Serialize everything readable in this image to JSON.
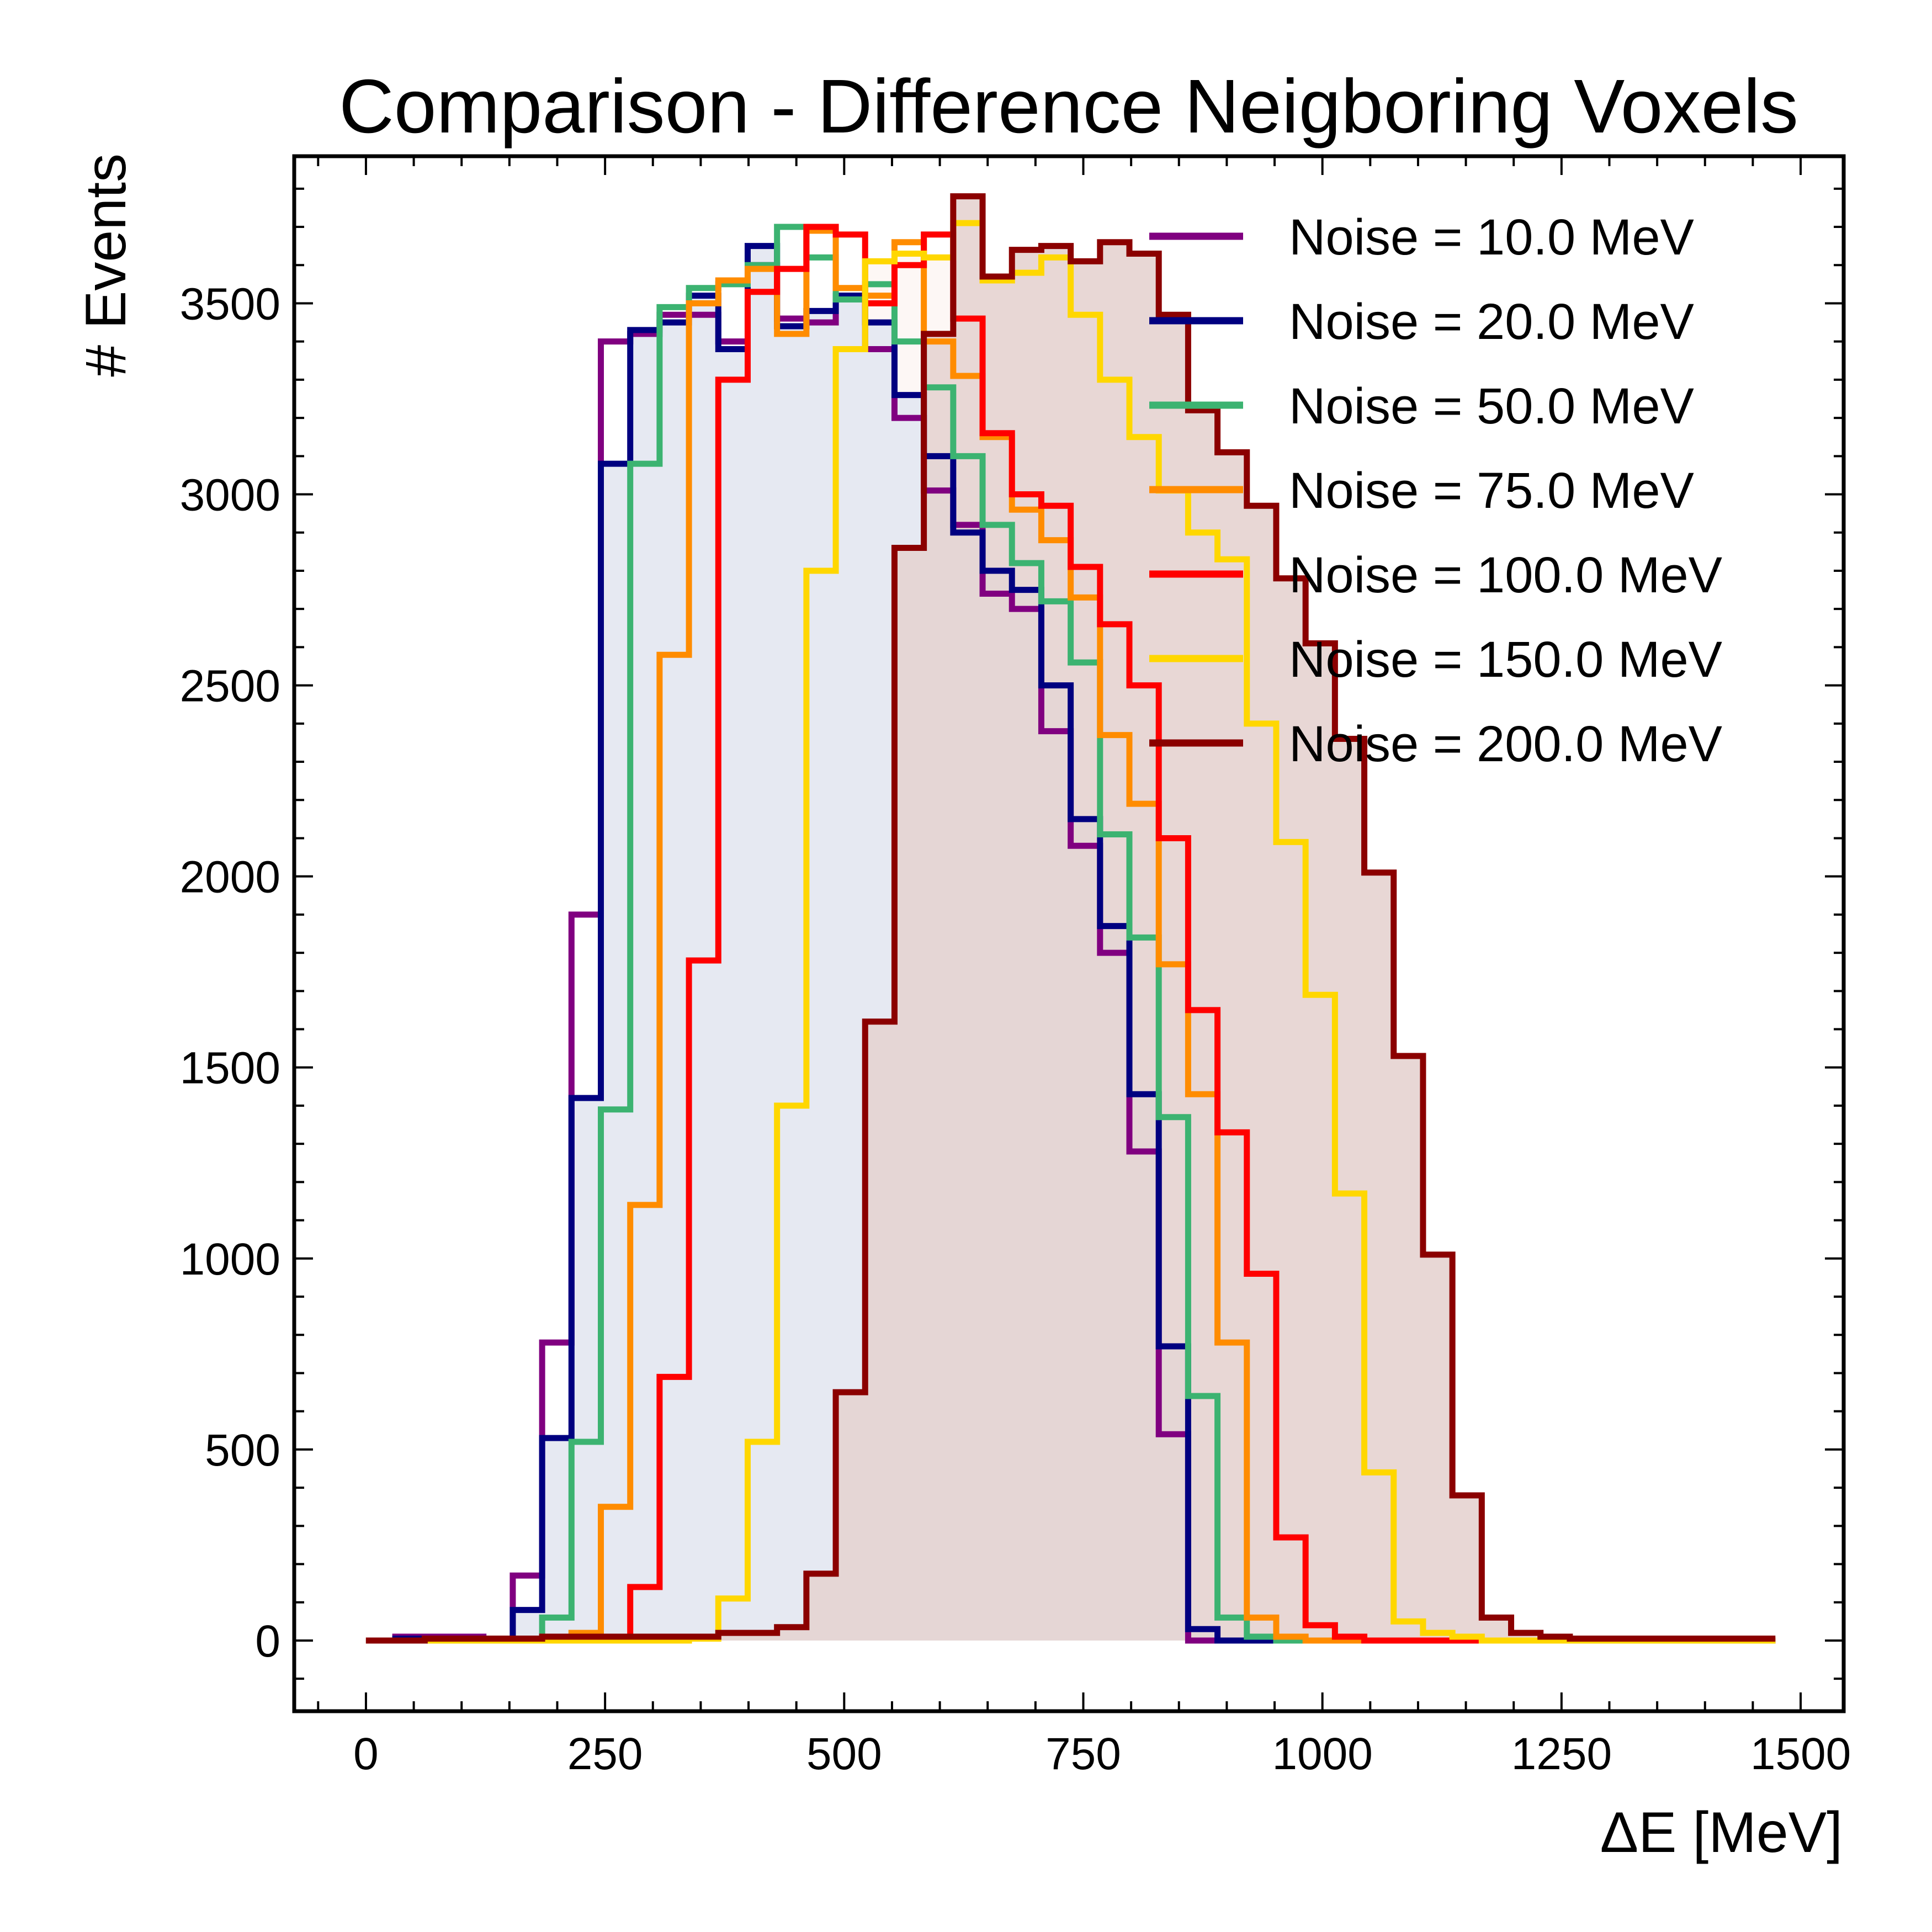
{
  "chart_data": {
    "type": "histogram-step",
    "title": "Comparison - Difference Neigboring Voxels",
    "xlabel": "ΔE [MeV]",
    "ylabel": "# Events",
    "xlim": [
      -75,
      1545
    ],
    "ylim": [
      -185,
      3885
    ],
    "xticks": [
      0,
      250,
      500,
      750,
      1000,
      1250,
      1500
    ],
    "xtick_labels": [
      "0",
      "250",
      "500",
      "750",
      "1000",
      "1250",
      "1500"
    ],
    "yticks": [
      0,
      500,
      1000,
      1500,
      2000,
      2500,
      3000,
      3500
    ],
    "ytick_labels": [
      "0",
      "500",
      "1000",
      "1500",
      "2000",
      "2500",
      "3000",
      "3500"
    ],
    "grid": false,
    "legend_position": "top-right",
    "bin_start": 0,
    "bin_width": 30.7,
    "series": [
      {
        "name": "Noise = 10.0 MeV",
        "color": "#800080",
        "values": [
          0,
          10,
          10,
          10,
          0,
          170,
          780,
          1900,
          3400,
          3420,
          3470,
          3470,
          3400,
          3600,
          3460,
          3450,
          3520,
          3380,
          3200,
          3010,
          2920,
          2740,
          2700,
          2380,
          2080,
          1800,
          1280,
          540,
          0,
          0,
          0,
          0,
          0,
          0,
          0,
          0,
          0,
          0,
          0,
          0,
          0,
          0,
          0,
          0,
          0,
          0,
          0,
          0
        ]
      },
      {
        "name": "Noise = 20.0 MeV",
        "color": "#000080",
        "values": [
          0,
          5,
          5,
          5,
          5,
          80,
          530,
          1420,
          3080,
          3430,
          3450,
          3520,
          3380,
          3650,
          3440,
          3480,
          3520,
          3450,
          3260,
          3100,
          2900,
          2800,
          2750,
          2500,
          2150,
          1870,
          1430,
          770,
          30,
          0,
          0,
          0,
          0,
          0,
          0,
          0,
          0,
          0,
          0,
          0,
          0,
          0,
          0,
          0,
          0,
          0,
          0,
          0
        ]
      },
      {
        "name": "Noise = 50.0 MeV",
        "color": "#3cb371",
        "values": [
          0,
          0,
          0,
          0,
          5,
          5,
          60,
          520,
          1390,
          3080,
          3490,
          3540,
          3550,
          3600,
          3700,
          3620,
          3510,
          3550,
          3400,
          3280,
          3100,
          2920,
          2820,
          2720,
          2560,
          2110,
          1840,
          1370,
          640,
          60,
          10,
          0,
          0,
          0,
          0,
          0,
          0,
          0,
          0,
          0,
          0,
          0,
          0,
          0,
          0,
          0,
          0,
          0
        ]
      },
      {
        "name": "Noise = 75.0 MeV",
        "color": "#ff8c00",
        "values": [
          0,
          0,
          0,
          0,
          0,
          0,
          5,
          20,
          350,
          1140,
          2580,
          3500,
          3560,
          3590,
          3420,
          3690,
          3540,
          3520,
          3660,
          3400,
          3310,
          3150,
          2960,
          2880,
          2730,
          2370,
          2190,
          1770,
          1430,
          780,
          60,
          10,
          0,
          0,
          0,
          0,
          0,
          0,
          0,
          0,
          0,
          0,
          0,
          0,
          0,
          0,
          0,
          0
        ]
      },
      {
        "name": "Noise = 100.0 MeV",
        "color": "#ff0000",
        "values": [
          0,
          0,
          0,
          0,
          0,
          0,
          0,
          0,
          5,
          140,
          690,
          1780,
          3300,
          3530,
          3590,
          3700,
          3680,
          3500,
          3600,
          3680,
          3460,
          3160,
          3000,
          2970,
          2810,
          2660,
          2500,
          2100,
          1650,
          1330,
          960,
          270,
          40,
          10,
          0,
          0,
          0,
          0,
          0,
          0,
          0,
          0,
          0,
          0,
          0,
          0,
          0,
          0
        ]
      },
      {
        "name": "Noise = 150.0 MeV",
        "color": "#ffd700",
        "values": [
          0,
          0,
          0,
          0,
          0,
          0,
          0,
          0,
          0,
          0,
          0,
          5,
          110,
          520,
          1400,
          2800,
          3380,
          3610,
          3630,
          3620,
          3710,
          3560,
          3580,
          3620,
          3470,
          3300,
          3150,
          3010,
          2900,
          2830,
          2400,
          2090,
          1690,
          1170,
          440,
          50,
          20,
          10,
          0,
          0,
          0,
          0,
          0,
          0,
          0,
          0,
          0,
          0
        ]
      },
      {
        "name": "Noise = 200.0 MeV",
        "color": "#8b0000",
        "values": [
          0,
          0,
          5,
          5,
          5,
          5,
          10,
          10,
          10,
          10,
          10,
          10,
          20,
          20,
          35,
          175,
          650,
          1620,
          2860,
          3420,
          3780,
          3570,
          3640,
          3650,
          3610,
          3660,
          3630,
          3470,
          3220,
          3110,
          2970,
          2780,
          2610,
          2360,
          2010,
          1530,
          1010,
          380,
          60,
          20,
          10,
          5,
          5,
          5,
          5,
          5,
          5,
          5
        ]
      }
    ]
  },
  "fill": {
    "back_color": "#e6e9f2",
    "front_color": "#e4d2d0",
    "right_color": "#fcf1ef"
  }
}
